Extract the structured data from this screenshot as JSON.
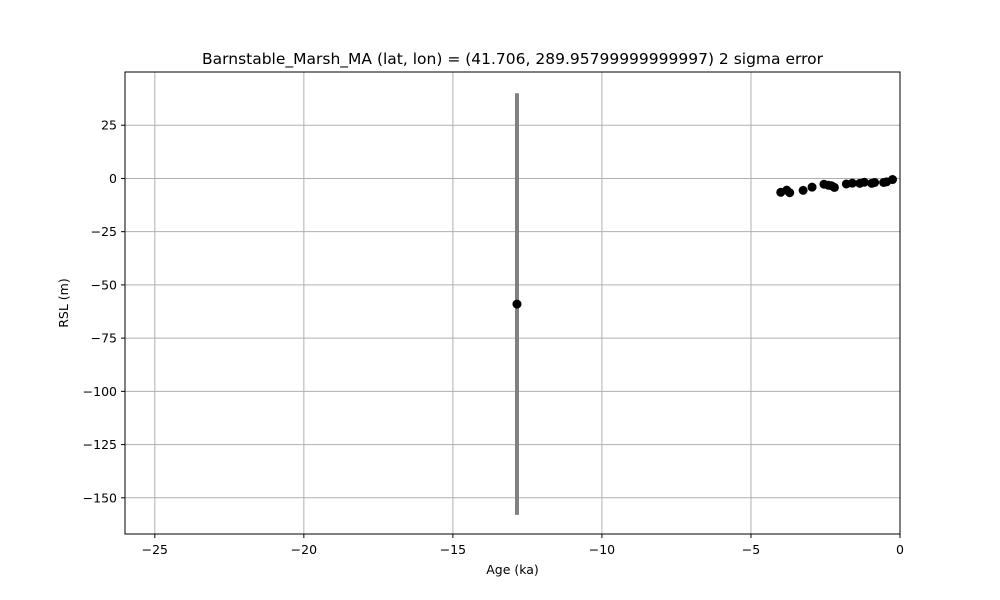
{
  "chart_data": {
    "type": "scatter",
    "title": "Barnstable_Marsh_MA (lat, lon) = (41.706, 289.95799999999997)  2 sigma error",
    "xlabel": "Age (ka)",
    "ylabel": "RSL (m)",
    "xlim": [
      -26,
      0
    ],
    "ylim": [
      -167,
      50
    ],
    "xticks": [
      -25,
      -20,
      -15,
      -10,
      -5,
      0
    ],
    "xtick_labels": [
      "−25",
      "−20",
      "−15",
      "−10",
      "−5",
      "0"
    ],
    "yticks": [
      25,
      0,
      -25,
      -50,
      -75,
      -100,
      -125,
      -150
    ],
    "ytick_labels": [
      "25",
      "0",
      "−25",
      "−50",
      "−75",
      "−100",
      "−125",
      "−150"
    ],
    "grid": true,
    "colors": {
      "points": "#000000",
      "error_bar": "#808080",
      "grid": "#b0b0b0"
    },
    "points": [
      {
        "x": -12.85,
        "y": -59,
        "y_err_low": -158,
        "y_err_high": 40
      },
      {
        "x": -4.0,
        "y": -6.5
      },
      {
        "x": -3.8,
        "y": -5.5
      },
      {
        "x": -3.7,
        "y": -6.7
      },
      {
        "x": -3.25,
        "y": -5.6
      },
      {
        "x": -2.95,
        "y": -4.1
      },
      {
        "x": -2.55,
        "y": -2.7
      },
      {
        "x": -2.4,
        "y": -3.2
      },
      {
        "x": -2.3,
        "y": -3.4
      },
      {
        "x": -2.2,
        "y": -4.2
      },
      {
        "x": -1.8,
        "y": -2.6
      },
      {
        "x": -1.6,
        "y": -2.2
      },
      {
        "x": -1.35,
        "y": -2.3
      },
      {
        "x": -1.2,
        "y": -1.8
      },
      {
        "x": -0.95,
        "y": -2.3
      },
      {
        "x": -0.85,
        "y": -1.9
      },
      {
        "x": -0.55,
        "y": -1.9
      },
      {
        "x": -0.45,
        "y": -1.6
      },
      {
        "x": -0.25,
        "y": -0.5
      }
    ]
  }
}
